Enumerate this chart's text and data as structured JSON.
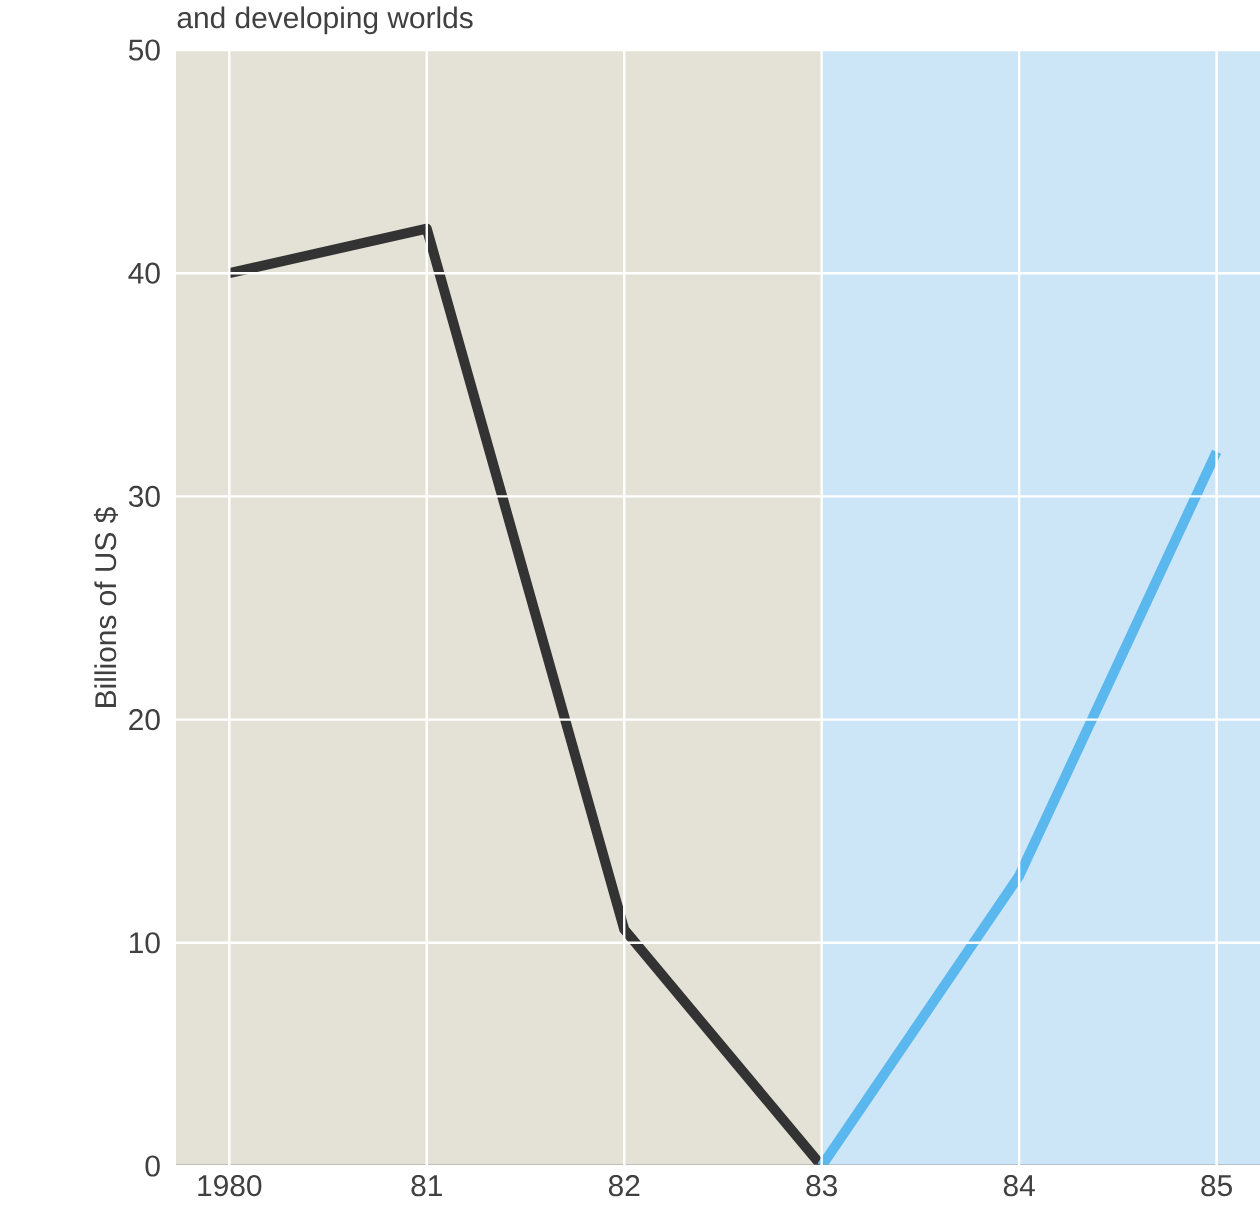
{
  "chart_data": {
    "type": "line",
    "title": "and developing worlds",
    "ylabel": "Billions of US $",
    "series": [
      {
        "color": "#333333",
        "x": [
          1980,
          1981,
          1982,
          1983
        ],
        "values": [
          40,
          42,
          10.6,
          0
        ]
      },
      {
        "color": "#5bb8ef",
        "x": [
          1983,
          1984,
          1985
        ],
        "values": [
          0,
          13,
          32
        ]
      }
    ],
    "xlim": [
      1979.73,
      1985.22
    ],
    "ylim": [
      0,
      50
    ],
    "xticks": [
      {
        "value": 1980,
        "label": "1980"
      },
      {
        "value": 1981,
        "label": "81"
      },
      {
        "value": 1982,
        "label": "82"
      },
      {
        "value": 1983,
        "label": "83"
      },
      {
        "value": 1984,
        "label": "84"
      },
      {
        "value": 1985,
        "label": "85"
      }
    ],
    "yticks": [
      0,
      10,
      20,
      30,
      40,
      50
    ],
    "bands": [
      {
        "axis": "x",
        "from": 1979.73,
        "to": 1983,
        "color": "#e4e2d6"
      },
      {
        "axis": "x",
        "from": 1983,
        "to": 1985.22,
        "color": "#cde6f7"
      }
    ],
    "grid": true,
    "line_style": "solid",
    "marker": "none"
  }
}
